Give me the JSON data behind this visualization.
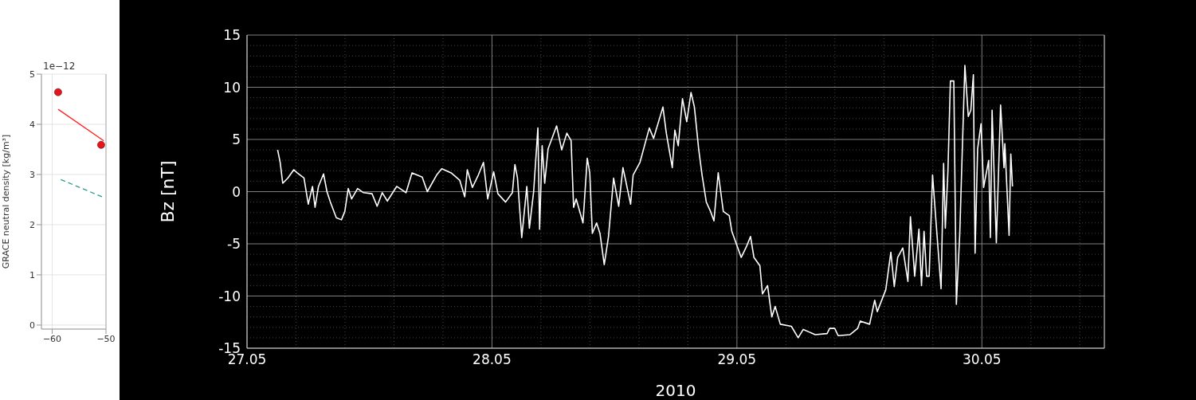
{
  "chart_data": [
    {
      "type": "scatter",
      "ylabel": "GRACE neutral density [kg/m³]",
      "annotations": [
        "1e−12"
      ],
      "xlim": [
        -62,
        -50
      ],
      "xticks": [
        {
          "value": -60,
          "label": "−60"
        },
        {
          "value": -50,
          "label": "−50"
        }
      ],
      "ylim": [
        -0.08,
        5
      ],
      "yticks": [
        0,
        1,
        2,
        3,
        4,
        5
      ],
      "grid": true,
      "series": [
        {
          "marker": "circle",
          "color": "#e8141c",
          "x": [
            -58.9,
            -50.9
          ],
          "values": [
            4.64,
            3.59
          ]
        },
        {
          "type": "line",
          "color": "#ff2020",
          "x": [
            -58.9,
            -50.4
          ],
          "values": [
            4.3,
            3.67
          ]
        },
        {
          "type": "line",
          "color": "#2a9d8f",
          "line_style": "dashed",
          "x": [
            -58.4,
            -50.4
          ],
          "values": [
            2.9,
            2.54
          ]
        }
      ]
    },
    {
      "type": "line",
      "xlabel": "2010",
      "ylabel": "Bz [nT]",
      "color": "#ffffff",
      "grid": true,
      "xlim": [
        "2010-05-27",
        "2010-05-30T12:00"
      ],
      "xticks": [
        {
          "value": "2010-05-27",
          "label": "27.05"
        },
        {
          "value": "2010-05-28",
          "label": "28.05"
        },
        {
          "value": "2010-05-29",
          "label": "29.05"
        },
        {
          "value": "2010-05-30",
          "label": "30.05"
        }
      ],
      "ylim": [
        -15,
        15
      ],
      "yticks": [
        -15,
        -10,
        -5,
        0,
        5,
        10,
        15
      ],
      "x": [
        "2010-05-27T03:00",
        "2010-05-27T03:15",
        "2010-05-27T03:30",
        "2010-05-27T04:00",
        "2010-05-27T04:35",
        "2010-05-27T04:55",
        "2010-05-27T05:35",
        "2010-05-27T06:00",
        "2010-05-27T06:25",
        "2010-05-27T06:40",
        "2010-05-27T07:00",
        "2010-05-27T07:30",
        "2010-05-27T07:50",
        "2010-05-27T08:10",
        "2010-05-27T08:45",
        "2010-05-27T09:15",
        "2010-05-27T09:35",
        "2010-05-27T09:55",
        "2010-05-27T10:15",
        "2010-05-27T10:50",
        "2010-05-27T11:25",
        "2010-05-27T12:15",
        "2010-05-27T12:45",
        "2010-05-27T13:15",
        "2010-05-27T13:45",
        "2010-05-27T14:40",
        "2010-05-27T15:35",
        "2010-05-27T16:10",
        "2010-05-27T17:10",
        "2010-05-27T17:40",
        "2010-05-27T18:35",
        "2010-05-27T19:05",
        "2010-05-27T20:00",
        "2010-05-27T20:50",
        "2010-05-27T21:20",
        "2010-05-27T21:35",
        "2010-05-27T22:05",
        "2010-05-27T22:40",
        "2010-05-27T23:10",
        "2010-05-27T23:35",
        "2010-05-28T00:10",
        "2010-05-28T00:35",
        "2010-05-28T01:20",
        "2010-05-28T02:00",
        "2010-05-28T02:15",
        "2010-05-28T02:30",
        "2010-05-28T02:55",
        "2010-05-28T03:25",
        "2010-05-28T03:40",
        "2010-05-28T04:05",
        "2010-05-28T04:30",
        "2010-05-28T04:40",
        "2010-05-28T04:55",
        "2010-05-28T05:10",
        "2010-05-28T05:30",
        "2010-05-28T06:20",
        "2010-05-28T06:50",
        "2010-05-28T07:20",
        "2010-05-28T07:45",
        "2010-05-28T08:00",
        "2010-05-28T08:15",
        "2010-05-28T08:55",
        "2010-05-28T09:20",
        "2010-05-28T09:35",
        "2010-05-28T09:50",
        "2010-05-28T10:15",
        "2010-05-28T10:35",
        "2010-05-28T11:00",
        "2010-05-28T11:25",
        "2010-05-28T11:55",
        "2010-05-28T12:25",
        "2010-05-28T12:50",
        "2010-05-28T13:35",
        "2010-05-28T13:50",
        "2010-05-28T14:30",
        "2010-05-28T15:25",
        "2010-05-28T15:50",
        "2010-05-28T16:45",
        "2010-05-28T17:05",
        "2010-05-28T17:40",
        "2010-05-28T17:55",
        "2010-05-28T18:15",
        "2010-05-28T18:40",
        "2010-05-28T19:05",
        "2010-05-28T19:30",
        "2010-05-28T19:50",
        "2010-05-28T20:15",
        "2010-05-28T20:35",
        "2010-05-28T21:00",
        "2010-05-28T21:25",
        "2010-05-28T21:45",
        "2010-05-28T22:10",
        "2010-05-28T22:40",
        "2010-05-28T23:15",
        "2010-05-28T23:30",
        "2010-05-29T00:25",
        "2010-05-29T00:55",
        "2010-05-29T01:20",
        "2010-05-29T01:40",
        "2010-05-29T02:15",
        "2010-05-29T02:30",
        "2010-05-29T03:00",
        "2010-05-29T03:25",
        "2010-05-29T03:45",
        "2010-05-29T04:15",
        "2010-05-29T05:20",
        "2010-05-29T06:00",
        "2010-05-29T06:30",
        "2010-05-29T07:40",
        "2010-05-29T08:50",
        "2010-05-29T09:05",
        "2010-05-29T09:35",
        "2010-05-29T09:55",
        "2010-05-29T11:05",
        "2010-05-29T11:50",
        "2010-05-29T12:05",
        "2010-05-29T13:00",
        "2010-05-29T13:30",
        "2010-05-29T13:45",
        "2010-05-29T14:35",
        "2010-05-29T15:05",
        "2010-05-29T15:25",
        "2010-05-29T15:45",
        "2010-05-29T16:15",
        "2010-05-29T16:45",
        "2010-05-29T17:00",
        "2010-05-29T17:25",
        "2010-05-29T17:50",
        "2010-05-29T18:05",
        "2010-05-29T18:20",
        "2010-05-29T18:35",
        "2010-05-29T18:50",
        "2010-05-29T19:10",
        "2010-05-29T19:30",
        "2010-05-29T20:00",
        "2010-05-29T20:15",
        "2010-05-29T20:25",
        "2010-05-29T20:40",
        "2010-05-29T20:55",
        "2010-05-29T21:15",
        "2010-05-29T21:30",
        "2010-05-29T21:50",
        "2010-05-29T22:20",
        "2010-05-29T22:40",
        "2010-05-29T22:55",
        "2010-05-29T23:10",
        "2010-05-29T23:20",
        "2010-05-29T23:35",
        "2010-05-29T23:55",
        "2010-05-30T00:10",
        "2010-05-30T00:40",
        "2010-05-30T00:50",
        "2010-05-30T01:00",
        "2010-05-30T01:25",
        "2010-05-30T01:50",
        "2010-05-30T02:10",
        "2010-05-30T02:15",
        "2010-05-30T02:40",
        "2010-05-30T02:50",
        "2010-05-30T03:00"
      ],
      "values": [
        4.0,
        2.8,
        0.8,
        1.3,
        2.1,
        1.8,
        1.3,
        -1.2,
        0.5,
        -1.5,
        0.5,
        1.7,
        0,
        -1.0,
        -2.5,
        -2.7,
        -1.9,
        0.3,
        -0.7,
        0.3,
        -0.1,
        -0.2,
        -1.4,
        -0.1,
        -0.9,
        0.5,
        -0.1,
        1.8,
        1.4,
        0,
        1.6,
        2.2,
        1.8,
        1.1,
        -0.5,
        2.1,
        0.4,
        1.6,
        2.8,
        -0.7,
        1.9,
        -0.2,
        -1.0,
        -0.1,
        2.6,
        1.3,
        -4.4,
        0.5,
        -3.5,
        0,
        6.1,
        -3.6,
        4.4,
        0.8,
        4.1,
        6.3,
        4.0,
        5.6,
        4.9,
        -1.5,
        -0.7,
        -3.0,
        3.2,
        1.8,
        -4.0,
        -3.0,
        -4.0,
        -7.0,
        -4.3,
        1.3,
        -1.4,
        2.3,
        -1.2,
        1.6,
        2.8,
        6.1,
        5.1,
        8.1,
        5.6,
        2.3,
        5.9,
        4.4,
        8.9,
        6.7,
        9.5,
        8.1,
        4.1,
        1.6,
        -1.0,
        -1.9,
        -2.8,
        1.8,
        -1.9,
        -2.3,
        -3.8,
        -6.3,
        -5.3,
        -4.3,
        -6.3,
        -7.1,
        -9.8,
        -9.0,
        -12.0,
        -11.0,
        -12.7,
        -12.9,
        -14.0,
        -13.2,
        -13.7,
        -13.6,
        -13.1,
        -13.1,
        -13.8,
        -13.7,
        -13.1,
        -12.4,
        -12.7,
        -10.4,
        -11.5,
        -9.4,
        -5.8,
        -9.1,
        -6.3,
        -5.4,
        -8.6,
        -2.4,
        -8.1,
        -3.6,
        -9.0,
        -3.8,
        -8.1,
        -8.1,
        1.6,
        -2.8,
        -9.3,
        2.7,
        -3.5,
        1.8,
        10.6,
        10.6,
        -10.8,
        -4.0,
        12.1,
        7.2,
        7.8,
        11.2,
        -5.9,
        4.1,
        6.5,
        0.4,
        3.0,
        -4.4,
        7.8,
        -4.9,
        8.3,
        2.3,
        4.6,
        -4.2,
        3.6,
        0.5
      ]
    }
  ]
}
